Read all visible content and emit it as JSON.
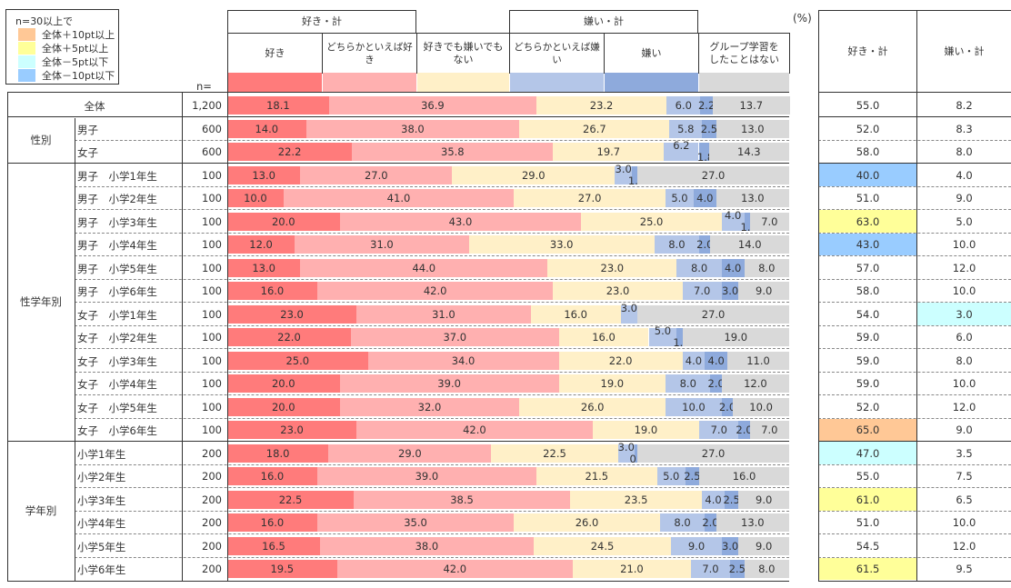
{
  "legend": {
    "title": "n=30以上で",
    "items": [
      {
        "label": "全体＋10pt以上",
        "color": "#ffc896"
      },
      {
        "label": "全体＋5pt以上",
        "color": "#ffff99"
      },
      {
        "label": "全体－5pt以下",
        "color": "#ccffff"
      },
      {
        "label": "全体－10pt以下",
        "color": "#99ccff"
      }
    ]
  },
  "header": {
    "n_label": "n=",
    "unit": "(%)",
    "group_like": "好き・計",
    "group_dislike": "嫌い・計",
    "columns": [
      "好き",
      "どちらかといえば好き",
      "好きでも嫌いでもない",
      "どちらかといえば嫌い",
      "嫌い",
      "グループ学習をしたことはない"
    ],
    "column_lines": [
      [
        "好き"
      ],
      [
        "どちらかといえば好き"
      ],
      [
        "好きでも嫌いでも",
        "ない"
      ],
      [
        "どちらかといえば嫌い"
      ],
      [
        "嫌い"
      ],
      [
        "グループ学習を",
        "したことはない"
      ]
    ],
    "summary_columns": [
      "好き・計",
      "嫌い・計"
    ]
  },
  "colors": {
    "seg": [
      "#ff7b7b",
      "#ffb0b0",
      "#fff0c8",
      "#b4c6e8",
      "#8eaadc",
      "#d9d9d9"
    ],
    "highlight_plus10": "#ffc896",
    "highlight_plus5": "#ffff99",
    "highlight_minus5": "#ccffff",
    "highlight_minus10": "#99ccff"
  },
  "groups": [
    {
      "name": "",
      "rows": [
        0
      ]
    },
    {
      "name": "性別",
      "rows": [
        1,
        2
      ]
    },
    {
      "name": "性学年別",
      "rows": [
        3,
        4,
        5,
        6,
        7,
        8,
        9,
        10,
        11,
        12,
        13,
        14
      ]
    },
    {
      "name": "学年別",
      "rows": [
        15,
        16,
        17,
        18,
        19,
        20
      ]
    }
  ],
  "chart_data": {
    "type": "bar",
    "stacked": true,
    "orientation": "horizontal",
    "unit": "%",
    "series_names": [
      "好き",
      "どちらかといえば好き",
      "好きでも嫌いでもない",
      "どちらかといえば嫌い",
      "嫌い",
      "グループ学習をしたことはない"
    ],
    "categories": [
      "全体",
      "男子",
      "女子",
      "男子　小学1年生",
      "男子　小学2年生",
      "男子　小学3年生",
      "男子　小学4年生",
      "男子　小学5年生",
      "男子　小学6年生",
      "女子　小学1年生",
      "女子　小学2年生",
      "女子　小学3年生",
      "女子　小学4年生",
      "女子　小学5年生",
      "女子　小学6年生",
      "小学1年生",
      "小学2年生",
      "小学3年生",
      "小学4年生",
      "小学5年生",
      "小学6年生"
    ],
    "rows": [
      {
        "label": "全体",
        "n": "1,200",
        "values": [
          "18.1",
          "36.9",
          "23.2",
          "6.0",
          "2.2",
          "13.7"
        ],
        "like_total": "55.0",
        "dislike_total": "8.2",
        "like_hl": "",
        "dislike_hl": ""
      },
      {
        "label": "男子",
        "n": "600",
        "values": [
          "14.0",
          "38.0",
          "26.7",
          "5.8",
          "2.5",
          "13.0"
        ],
        "like_total": "52.0",
        "dislike_total": "8.3",
        "like_hl": "",
        "dislike_hl": ""
      },
      {
        "label": "女子",
        "n": "600",
        "values": [
          "22.2",
          "35.8",
          "19.7",
          "6.2",
          "1.8",
          "14.3"
        ],
        "like_total": "58.0",
        "dislike_total": "8.0",
        "like_hl": "",
        "dislike_hl": ""
      },
      {
        "label": "男子　小学1年生",
        "n": "100",
        "values": [
          "13.0",
          "27.0",
          "29.0",
          "3.0",
          "1.0",
          "27.0"
        ],
        "like_total": "40.0",
        "dislike_total": "4.0",
        "like_hl": "minus10",
        "dislike_hl": ""
      },
      {
        "label": "男子　小学2年生",
        "n": "100",
        "values": [
          "10.0",
          "41.0",
          "27.0",
          "5.0",
          "4.0",
          "13.0"
        ],
        "like_total": "51.0",
        "dislike_total": "9.0",
        "like_hl": "",
        "dislike_hl": ""
      },
      {
        "label": "男子　小学3年生",
        "n": "100",
        "values": [
          "20.0",
          "43.0",
          "25.0",
          "4.0",
          "1.0",
          "7.0"
        ],
        "like_total": "63.0",
        "dislike_total": "5.0",
        "like_hl": "plus5",
        "dislike_hl": ""
      },
      {
        "label": "男子　小学4年生",
        "n": "100",
        "values": [
          "12.0",
          "31.0",
          "33.0",
          "8.0",
          "2.0",
          "14.0"
        ],
        "like_total": "43.0",
        "dislike_total": "10.0",
        "like_hl": "minus10",
        "dislike_hl": ""
      },
      {
        "label": "男子　小学5年生",
        "n": "100",
        "values": [
          "13.0",
          "44.0",
          "23.0",
          "8.0",
          "4.0",
          "8.0"
        ],
        "like_total": "57.0",
        "dislike_total": "12.0",
        "like_hl": "",
        "dislike_hl": ""
      },
      {
        "label": "男子　小学6年生",
        "n": "100",
        "values": [
          "16.0",
          "42.0",
          "23.0",
          "7.0",
          "3.0",
          "9.0"
        ],
        "like_total": "58.0",
        "dislike_total": "10.0",
        "like_hl": "",
        "dislike_hl": ""
      },
      {
        "label": "女子　小学1年生",
        "n": "100",
        "values": [
          "23.0",
          "31.0",
          "16.0",
          "3.0",
          "0.0",
          "27.0"
        ],
        "like_total": "54.0",
        "dislike_total": "3.0",
        "like_hl": "",
        "dislike_hl": "minus5"
      },
      {
        "label": "女子　小学2年生",
        "n": "100",
        "values": [
          "22.0",
          "37.0",
          "16.0",
          "5.0",
          "1.0",
          "19.0"
        ],
        "like_total": "59.0",
        "dislike_total": "6.0",
        "like_hl": "",
        "dislike_hl": ""
      },
      {
        "label": "女子　小学3年生",
        "n": "100",
        "values": [
          "25.0",
          "34.0",
          "22.0",
          "4.0",
          "4.0",
          "11.0"
        ],
        "like_total": "59.0",
        "dislike_total": "8.0",
        "like_hl": "",
        "dislike_hl": ""
      },
      {
        "label": "女子　小学4年生",
        "n": "100",
        "values": [
          "20.0",
          "39.0",
          "19.0",
          "8.0",
          "2.0",
          "12.0"
        ],
        "like_total": "59.0",
        "dislike_total": "10.0",
        "like_hl": "",
        "dislike_hl": ""
      },
      {
        "label": "女子　小学5年生",
        "n": "100",
        "values": [
          "20.0",
          "32.0",
          "26.0",
          "10.0",
          "2.0",
          "10.0"
        ],
        "like_total": "52.0",
        "dislike_total": "12.0",
        "like_hl": "",
        "dislike_hl": ""
      },
      {
        "label": "女子　小学6年生",
        "n": "100",
        "values": [
          "23.0",
          "42.0",
          "19.0",
          "7.0",
          "2.0",
          "7.0"
        ],
        "like_total": "65.0",
        "dislike_total": "9.0",
        "like_hl": "plus10",
        "dislike_hl": ""
      },
      {
        "label": "小学1年生",
        "n": "200",
        "values": [
          "18.0",
          "29.0",
          "22.5",
          "3.0",
          "0.5",
          "27.0"
        ],
        "like_total": "47.0",
        "dislike_total": "3.5",
        "like_hl": "minus5",
        "dislike_hl": ""
      },
      {
        "label": "小学2年生",
        "n": "200",
        "values": [
          "16.0",
          "39.0",
          "21.5",
          "5.0",
          "2.5",
          "16.0"
        ],
        "like_total": "55.0",
        "dislike_total": "7.5",
        "like_hl": "",
        "dislike_hl": ""
      },
      {
        "label": "小学3年生",
        "n": "200",
        "values": [
          "22.5",
          "38.5",
          "23.5",
          "4.0",
          "2.5",
          "9.0"
        ],
        "like_total": "61.0",
        "dislike_total": "6.5",
        "like_hl": "plus5",
        "dislike_hl": ""
      },
      {
        "label": "小学4年生",
        "n": "200",
        "values": [
          "16.0",
          "35.0",
          "26.0",
          "8.0",
          "2.0",
          "13.0"
        ],
        "like_total": "51.0",
        "dislike_total": "10.0",
        "like_hl": "",
        "dislike_hl": ""
      },
      {
        "label": "小学5年生",
        "n": "200",
        "values": [
          "16.5",
          "38.0",
          "24.5",
          "9.0",
          "3.0",
          "9.0"
        ],
        "like_total": "54.5",
        "dislike_total": "12.0",
        "like_hl": "",
        "dislike_hl": ""
      },
      {
        "label": "小学6年生",
        "n": "200",
        "values": [
          "19.5",
          "42.0",
          "21.0",
          "7.0",
          "2.5",
          "8.0"
        ],
        "like_total": "61.5",
        "dislike_total": "9.5",
        "like_hl": "plus5",
        "dislike_hl": ""
      }
    ],
    "xlim": [
      0,
      100
    ]
  }
}
